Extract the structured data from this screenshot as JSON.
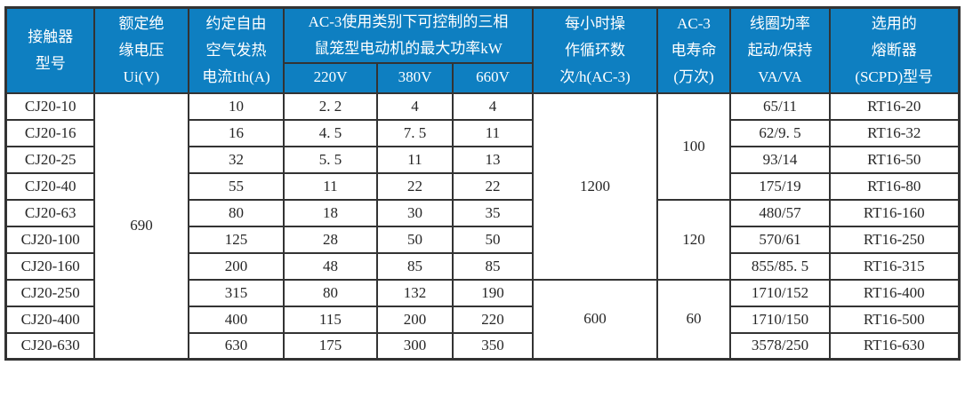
{
  "colors": {
    "header_bg": "#0e7fc1",
    "header_fg": "#ffffff",
    "border": "#333333"
  },
  "table": {
    "header": {
      "model": "接触器\n型号",
      "ui": "额定绝\n缘电压\nUi(V)",
      "ith": "约定自由\n空气发热\n电流Ith(A)",
      "power_group": "AC-3使用类别下可控制的三相\n鼠笼型电动机的最大功率kW",
      "v220": "220V",
      "v380": "380V",
      "v660": "660V",
      "cycles": "每小时操\n作循环数\n次/h(AC-3)",
      "life": "AC-3\n电寿命\n(万次)",
      "coil": "线圈功率\n起动/保持\nVA/VA",
      "fuse": "选用的\n熔断器\n(SCPD)型号"
    },
    "merged": {
      "ui_all": "690",
      "cycles_group1": "1200",
      "cycles_group2": "600",
      "life_group1": "100",
      "life_group2": "120",
      "life_group3": "60"
    },
    "rows": [
      {
        "model": "CJ20-10",
        "ith": "10",
        "p220": "2. 2",
        "p380": "4",
        "p660": "4",
        "coil": "65/11",
        "fuse": "RT16-20"
      },
      {
        "model": "CJ20-16",
        "ith": "16",
        "p220": "4. 5",
        "p380": "7. 5",
        "p660": "11",
        "coil": "62/9. 5",
        "fuse": "RT16-32"
      },
      {
        "model": "CJ20-25",
        "ith": "32",
        "p220": "5. 5",
        "p380": "11",
        "p660": "13",
        "coil": "93/14",
        "fuse": "RT16-50"
      },
      {
        "model": "CJ20-40",
        "ith": "55",
        "p220": "11",
        "p380": "22",
        "p660": "22",
        "coil": "175/19",
        "fuse": "RT16-80"
      },
      {
        "model": "CJ20-63",
        "ith": "80",
        "p220": "18",
        "p380": "30",
        "p660": "35",
        "coil": "480/57",
        "fuse": "RT16-160"
      },
      {
        "model": "CJ20-100",
        "ith": "125",
        "p220": "28",
        "p380": "50",
        "p660": "50",
        "coil": "570/61",
        "fuse": "RT16-250"
      },
      {
        "model": "CJ20-160",
        "ith": "200",
        "p220": "48",
        "p380": "85",
        "p660": "85",
        "coil": "855/85. 5",
        "fuse": "RT16-315"
      },
      {
        "model": "CJ20-250",
        "ith": "315",
        "p220": "80",
        "p380": "132",
        "p660": "190",
        "coil": "1710/152",
        "fuse": "RT16-400"
      },
      {
        "model": "CJ20-400",
        "ith": "400",
        "p220": "115",
        "p380": "200",
        "p660": "220",
        "coil": "1710/150",
        "fuse": "RT16-500"
      },
      {
        "model": "CJ20-630",
        "ith": "630",
        "p220": "175",
        "p380": "300",
        "p660": "350",
        "coil": "3578/250",
        "fuse": "RT16-630"
      }
    ]
  }
}
